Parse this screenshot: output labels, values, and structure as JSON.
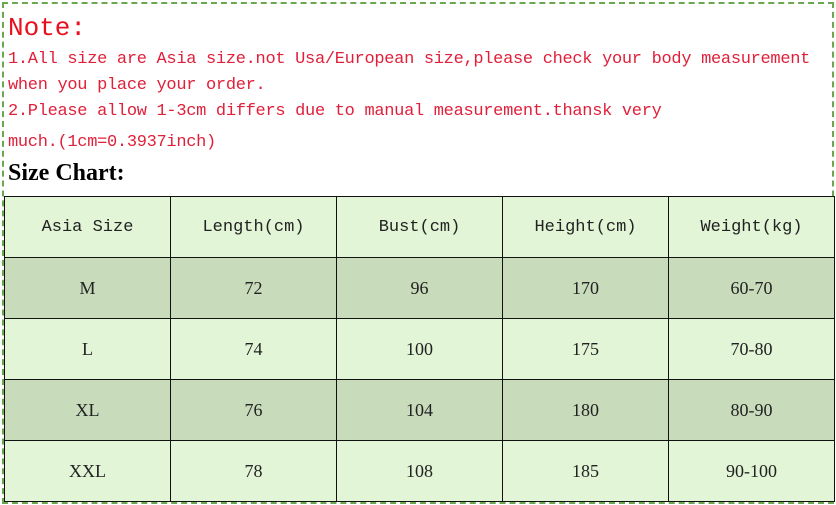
{
  "note": {
    "title": "Note:",
    "lines": [
      "1.All size are Asia size.not Usa/European size,please check your body measurement",
      "when you place your order.",
      "2.Please allow 1-3cm differs due to manual measurement.thansk very",
      "much.(1cm=0.3937inch)"
    ]
  },
  "size_chart_label": "Size Chart:",
  "table": {
    "headers": [
      "Asia Size",
      "Length(cm)",
      "Bust(cm)",
      "Height(cm)",
      "Weight(kg)"
    ],
    "rows": [
      [
        "M",
        "72",
        "96",
        "170",
        "60-70"
      ],
      [
        "L",
        "74",
        "100",
        "175",
        "70-80"
      ],
      [
        "XL",
        "76",
        "104",
        "180",
        "80-90"
      ],
      [
        "XXL",
        "78",
        "108",
        "185",
        "90-100"
      ]
    ]
  },
  "colors": {
    "note_red": "#e8101e",
    "row_light": "#e2f5d6",
    "row_dark": "#c8dbbb",
    "border_green": "#6aa84f"
  }
}
